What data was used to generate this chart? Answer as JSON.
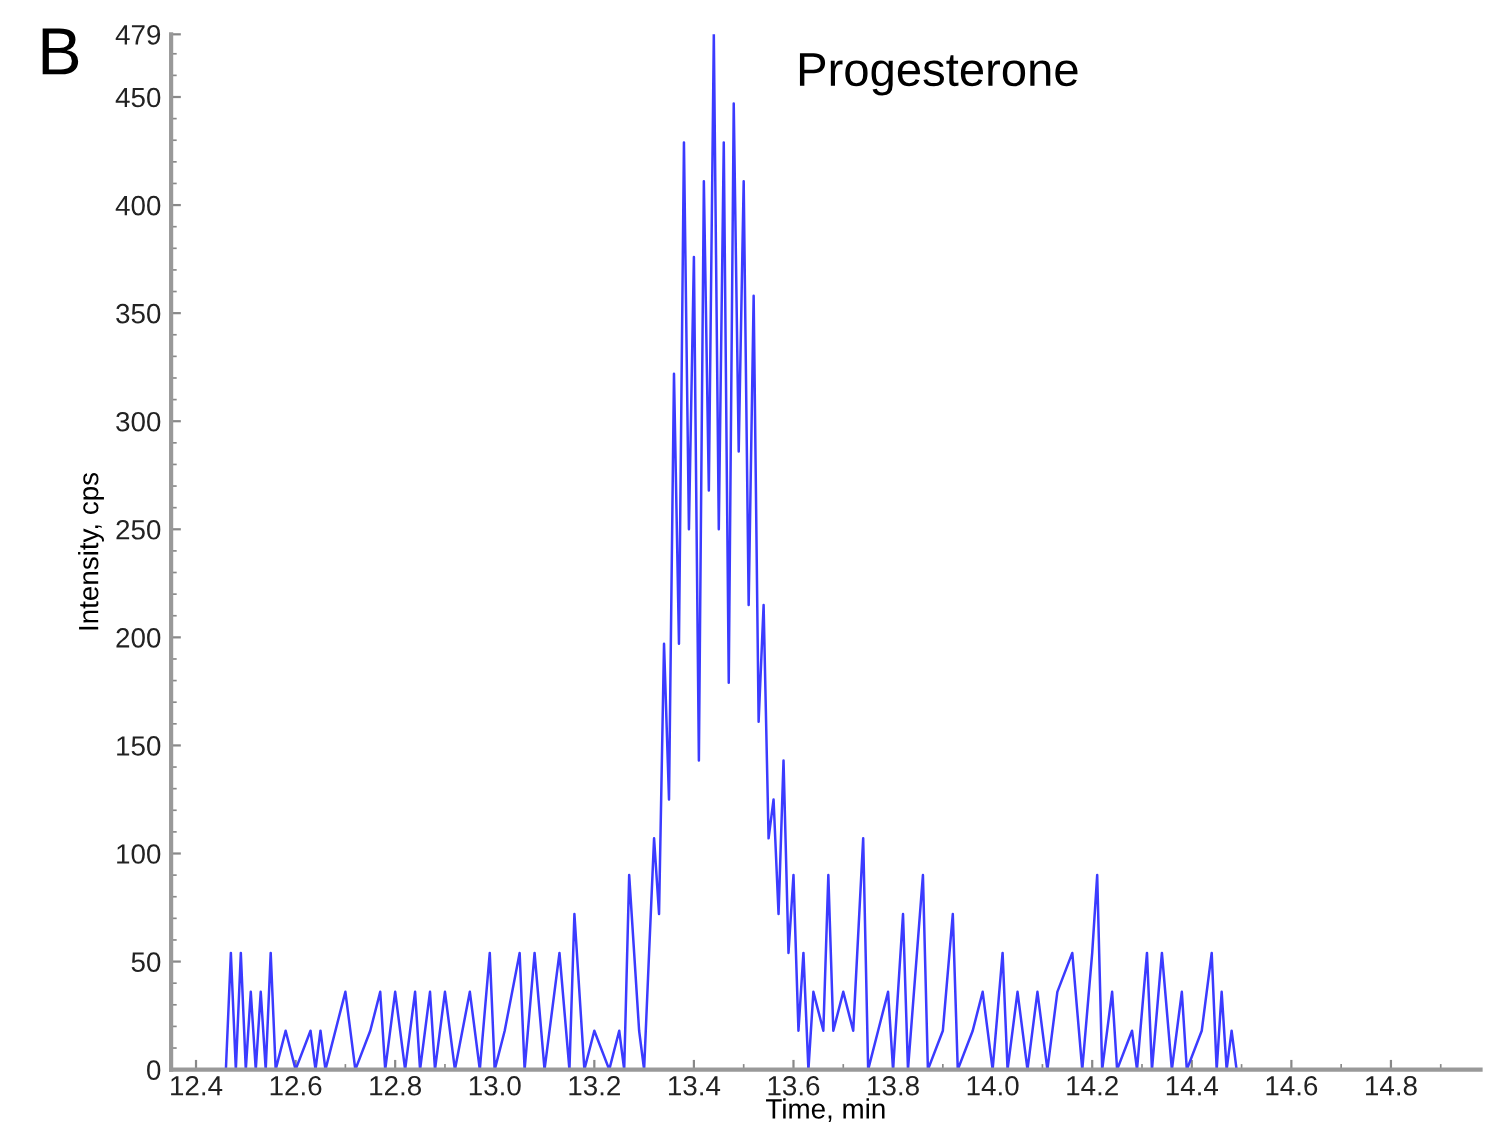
{
  "chart_data": {
    "type": "line",
    "xlabel": "Time, min",
    "ylabel": "Intensity, cps",
    "annotations": [
      "B",
      "Progesterone"
    ],
    "xlim": [
      12.35,
      14.98
    ],
    "ylim": [
      0,
      479
    ],
    "xticks": [
      12.4,
      12.6,
      12.8,
      {
        "value": 13.0,
        "label": "13.0"
      },
      13.2,
      13.4,
      13.6,
      13.8,
      {
        "value": 14.0,
        "label": "14.0"
      },
      14.2,
      14.4,
      14.6,
      14.8
    ],
    "yticks": [
      0,
      50,
      100,
      150,
      200,
      250,
      300,
      350,
      400,
      450,
      479
    ],
    "grid": false,
    "marker": "none",
    "line_style": "solid",
    "series": [
      {
        "color": "#3b3bff",
        "x": [
          12.46,
          12.47,
          12.48,
          12.49,
          12.5,
          12.51,
          12.52,
          12.53,
          12.54,
          12.55,
          12.56,
          12.58,
          12.6,
          12.63,
          12.64,
          12.65,
          12.66,
          12.7,
          12.72,
          12.75,
          12.77,
          12.78,
          12.8,
          12.82,
          12.84,
          12.85,
          12.87,
          12.88,
          12.9,
          12.92,
          12.95,
          12.97,
          12.99,
          13.0,
          13.02,
          13.05,
          13.06,
          13.08,
          13.1,
          13.13,
          13.15,
          13.16,
          13.18,
          13.2,
          13.23,
          13.25,
          13.26,
          13.27,
          13.29,
          13.3,
          13.31,
          13.32,
          13.33,
          13.34,
          13.35,
          13.36,
          13.37,
          13.38,
          13.39,
          13.4,
          13.41,
          13.42,
          13.43,
          13.44,
          13.45,
          13.46,
          13.47,
          13.48,
          13.49,
          13.5,
          13.51,
          13.52,
          13.53,
          13.54,
          13.55,
          13.56,
          13.57,
          13.58,
          13.59,
          13.6,
          13.61,
          13.62,
          13.63,
          13.64,
          13.66,
          13.67,
          13.68,
          13.7,
          13.72,
          13.74,
          13.75,
          13.77,
          13.79,
          13.8,
          13.82,
          13.83,
          13.86,
          13.87,
          13.9,
          13.92,
          13.93,
          13.96,
          13.98,
          14.0,
          14.02,
          14.03,
          14.05,
          14.07,
          14.09,
          14.11,
          14.13,
          14.16,
          14.18,
          14.2,
          14.21,
          14.22,
          14.24,
          14.25,
          14.28,
          14.29,
          14.31,
          14.32,
          14.34,
          14.36,
          14.38,
          14.39,
          14.42,
          14.44,
          14.45,
          14.46,
          14.47,
          14.48,
          14.49
        ],
        "values": [
          0,
          54,
          0,
          54,
          0,
          36,
          0,
          36,
          0,
          54,
          0,
          18,
          0,
          18,
          0,
          18,
          0,
          36,
          0,
          18,
          36,
          0,
          36,
          0,
          36,
          0,
          36,
          0,
          36,
          0,
          36,
          0,
          54,
          0,
          18,
          54,
          0,
          54,
          0,
          54,
          0,
          72,
          0,
          18,
          0,
          18,
          0,
          90,
          18,
          0,
          54,
          107,
          72,
          197,
          125,
          322,
          197,
          429,
          250,
          376,
          143,
          411,
          268,
          479,
          250,
          429,
          179,
          447,
          286,
          411,
          215,
          358,
          161,
          215,
          107,
          125,
          72,
          143,
          54,
          90,
          18,
          54,
          0,
          36,
          18,
          90,
          18,
          36,
          18,
          107,
          0,
          18,
          36,
          0,
          72,
          0,
          90,
          0,
          18,
          72,
          0,
          18,
          36,
          0,
          54,
          0,
          36,
          0,
          36,
          0,
          36,
          54,
          0,
          54,
          90,
          0,
          36,
          0,
          18,
          0,
          54,
          0,
          54,
          0,
          36,
          0,
          18,
          54,
          0,
          36,
          0,
          18,
          0
        ]
      }
    ]
  }
}
